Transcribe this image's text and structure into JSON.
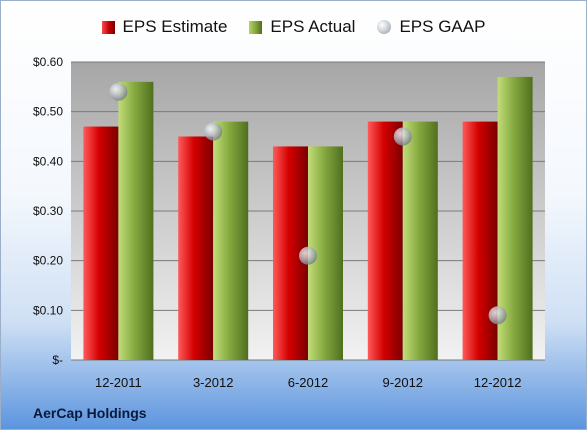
{
  "company": "AerCap Holdings",
  "legend": {
    "estimate": "EPS Estimate",
    "actual": "EPS Actual",
    "gaap": "EPS GAAP"
  },
  "colors": {
    "estimate": "#c00000",
    "actual": "#7fa33a",
    "gaap": "#b0b6be"
  },
  "chart_data": {
    "type": "bar",
    "categories": [
      "12-2011",
      "3-2012",
      "6-2012",
      "9-2012",
      "12-2012"
    ],
    "series": [
      {
        "name": "EPS Estimate",
        "values": [
          0.47,
          0.45,
          0.43,
          0.48,
          0.48
        ]
      },
      {
        "name": "EPS Actual",
        "values": [
          0.56,
          0.48,
          0.43,
          0.48,
          0.57
        ]
      },
      {
        "name": "EPS GAAP",
        "type": "scatter",
        "values": [
          0.54,
          0.46,
          0.21,
          0.45,
          0.09
        ]
      }
    ],
    "yticks": [
      "$-",
      "$0.10",
      "$0.20",
      "$0.30",
      "$0.40",
      "$0.50",
      "$0.60"
    ],
    "ylim": [
      0,
      0.6
    ],
    "grid": true,
    "legend_position": "top"
  }
}
